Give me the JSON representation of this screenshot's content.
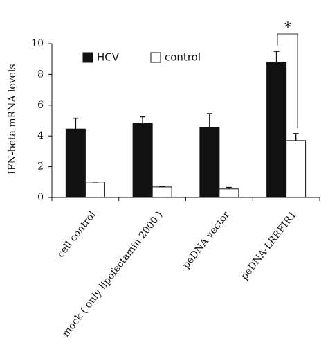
{
  "chart_data": {
    "type": "bar",
    "y_label": "IFN-beta  mRNA levels",
    "annotation": "*",
    "categories": [
      "cell control",
      "mock ( only lipofectamin 2000 )",
      "peDNA vector",
      "peDNA-LRRFIR1"
    ],
    "series": [
      {
        "name": "HCV",
        "color": "#111111",
        "values": [
          4.45,
          4.8,
          4.55,
          8.8
        ],
        "errors": [
          0.7,
          0.45,
          0.9,
          0.7
        ]
      },
      {
        "name": "control",
        "color": "#ffffff",
        "values": [
          1.0,
          0.68,
          0.55,
          3.7
        ],
        "errors": [
          0,
          0.05,
          0.1,
          0.45
        ]
      }
    ],
    "ylim": [
      0,
      10
    ],
    "yticks": [
      0,
      2,
      4,
      6,
      8,
      10
    ],
    "grid": false
  }
}
